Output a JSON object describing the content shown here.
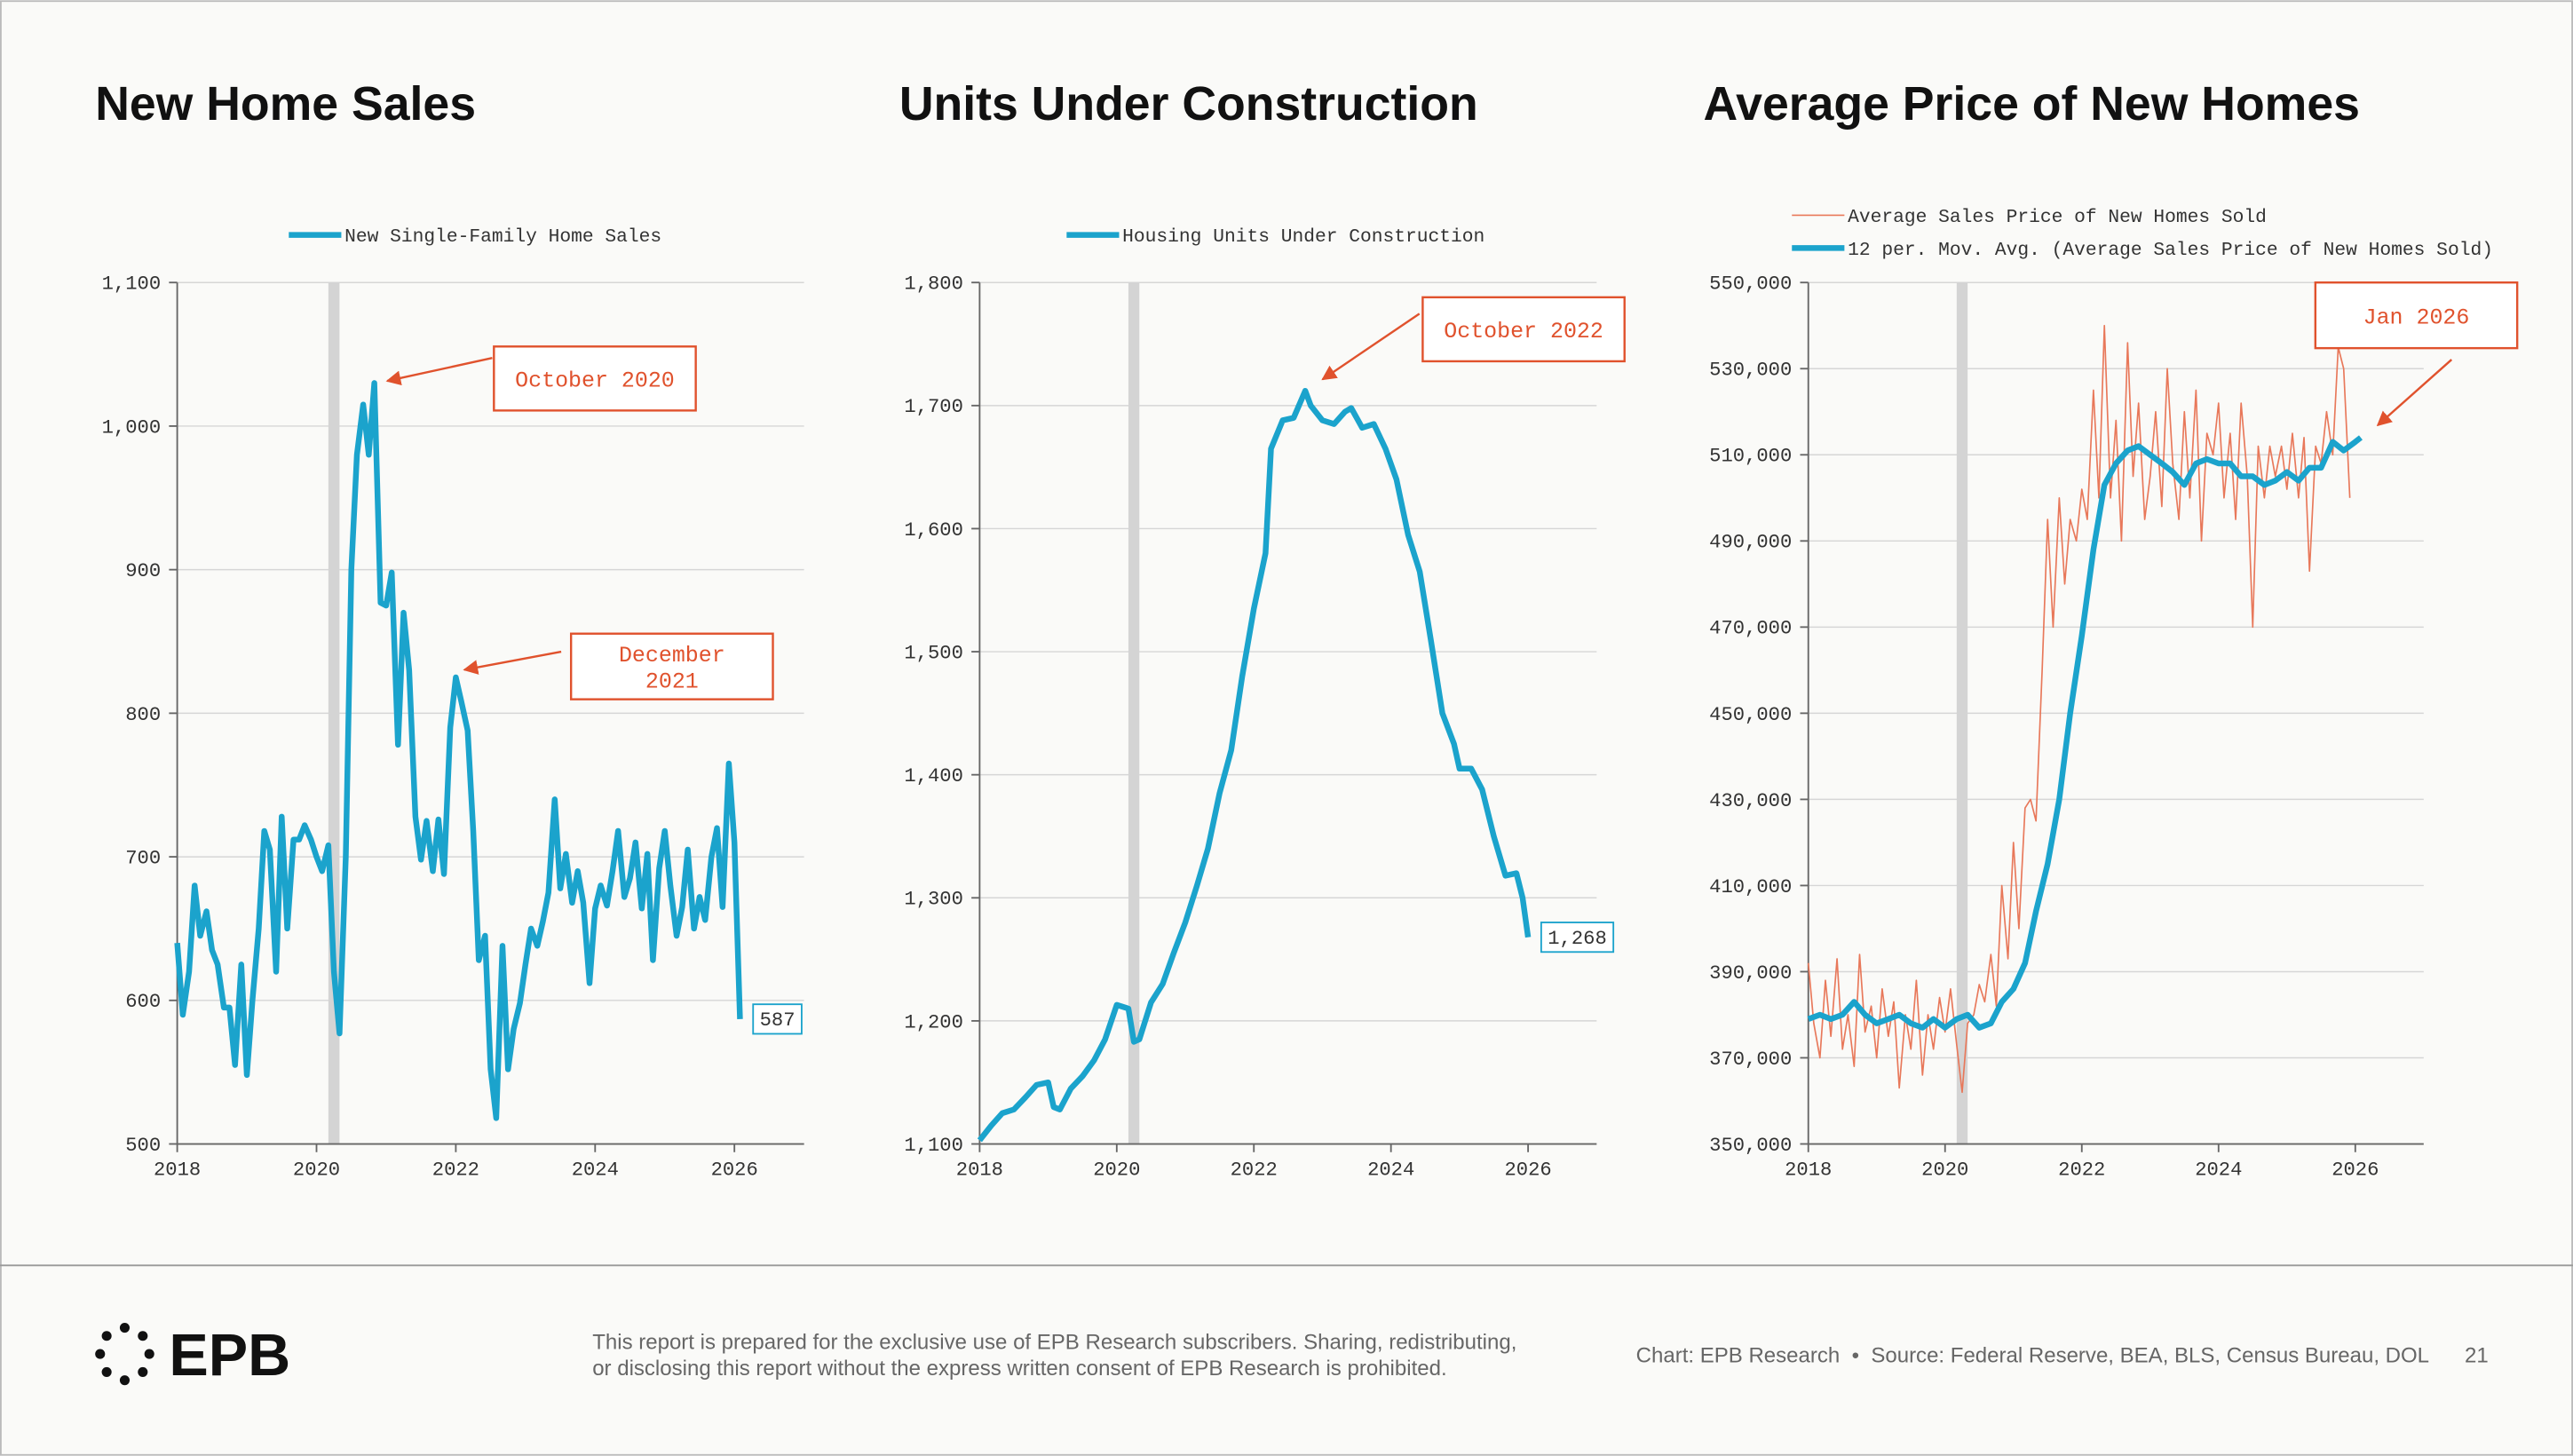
{
  "chart_data": [
    {
      "type": "line",
      "title": "New Home Sales",
      "xlim": [
        2018,
        2027
      ],
      "ylim": [
        500,
        1100
      ],
      "xticks": [
        2018,
        2020,
        2022,
        2024,
        2026
      ],
      "yticks": [
        500,
        600,
        700,
        800,
        900,
        {
          "value": 1000,
          "label": "1,000"
        },
        {
          "value": 1100,
          "label": "1,100"
        }
      ],
      "grid": true,
      "recession": [
        2020.17,
        2020.33
      ],
      "annotations": [
        [
          "October 2020"
        ],
        [
          "December",
          "2021"
        ]
      ],
      "series": [
        {
          "name": "New Single-Family Home Sales",
          "color": "#1ba3cc",
          "x": [
            2018,
            2018.08,
            2018.17,
            2018.25,
            2018.33,
            2018.42,
            2018.5,
            2018.58,
            2018.67,
            2018.75,
            2018.83,
            2018.92,
            2019,
            2019.08,
            2019.17,
            2019.25,
            2019.33,
            2019.42,
            2019.5,
            2019.58,
            2019.67,
            2019.75,
            2019.83,
            2019.92,
            2020,
            2020.08,
            2020.17,
            2020.25,
            2020.33,
            2020.42,
            2020.5,
            2020.58,
            2020.67,
            2020.75,
            2020.83,
            2020.92,
            2021,
            2021.08,
            2021.17,
            2021.25,
            2021.33,
            2021.42,
            2021.5,
            2021.58,
            2021.67,
            2021.75,
            2021.83,
            2021.92,
            2022,
            2022.08,
            2022.17,
            2022.25,
            2022.33,
            2022.42,
            2022.5,
            2022.58,
            2022.67,
            2022.75,
            2022.83,
            2022.92,
            2023,
            2023.08,
            2023.17,
            2023.25,
            2023.33,
            2023.42,
            2023.5,
            2023.58,
            2023.67,
            2023.75,
            2023.83,
            2023.92,
            2024,
            2024.08,
            2024.17,
            2024.25,
            2024.33,
            2024.42,
            2024.5,
            2024.58,
            2024.67,
            2024.75,
            2024.83,
            2024.92,
            2025,
            2025.08,
            2025.17,
            2025.25,
            2025.33,
            2025.42,
            2025.5,
            2025.58,
            2025.67,
            2025.75,
            2025.83,
            2025.92,
            2026,
            2026.08
          ],
          "values": [
            640,
            590,
            620,
            680,
            645,
            662,
            635,
            625,
            595,
            595,
            555,
            625,
            548,
            600,
            650,
            718,
            705,
            620,
            728,
            650,
            712,
            712,
            722,
            712,
            700,
            690,
            708,
            620,
            577,
            700,
            900,
            980,
            1015,
            980,
            1030,
            877,
            875,
            898,
            778,
            870,
            830,
            728,
            698,
            725,
            690,
            726,
            688,
            790,
            825,
            808,
            788,
            718,
            628,
            645,
            552,
            518,
            638,
            552,
            580,
            598,
            625,
            650,
            638,
            655,
            675,
            740,
            678,
            702,
            668,
            690,
            668,
            612,
            664,
            680,
            666,
            690,
            718,
            672,
            685,
            710,
            664,
            702,
            628,
            692,
            718,
            680,
            645,
            665,
            705,
            650,
            672,
            656,
            700,
            720,
            665,
            765,
            710,
            587
          ]
        }
      ]
    },
    {
      "type": "line",
      "title": "Units Under Construction",
      "xlim": [
        2018,
        2027
      ],
      "ylim": [
        1100,
        1800
      ],
      "xticks": [
        2018,
        2020,
        2022,
        2024,
        2026
      ],
      "yticks": [
        {
          "value": 1100,
          "label": "1,100"
        },
        {
          "value": 1200,
          "label": "1,200"
        },
        {
          "value": 1300,
          "label": "1,300"
        },
        {
          "value": 1400,
          "label": "1,400"
        },
        {
          "value": 1500,
          "label": "1,500"
        },
        {
          "value": 1600,
          "label": "1,600"
        },
        {
          "value": 1700,
          "label": "1,700"
        },
        {
          "value": 1800,
          "label": "1,800"
        }
      ],
      "grid": true,
      "recession": [
        2020.17,
        2020.33
      ],
      "annotations": [
        [
          "October 2022"
        ]
      ],
      "series": [
        {
          "name": "Housing Units Under Construction",
          "color": "#1ba3cc",
          "x": [
            2018,
            2018.17,
            2018.33,
            2018.5,
            2018.67,
            2018.83,
            2019,
            2019.08,
            2019.17,
            2019.33,
            2019.5,
            2019.67,
            2019.83,
            2020,
            2020.17,
            2020.25,
            2020.33,
            2020.5,
            2020.67,
            2020.83,
            2021,
            2021.17,
            2021.33,
            2021.5,
            2021.67,
            2021.83,
            2022,
            2022.17,
            2022.25,
            2022.42,
            2022.58,
            2022.75,
            2022.83,
            2023,
            2023.17,
            2023.33,
            2023.42,
            2023.58,
            2023.75,
            2023.92,
            2024.08,
            2024.25,
            2024.42,
            2024.58,
            2024.75,
            2024.92,
            2025,
            2025.17,
            2025.33,
            2025.5,
            2025.67,
            2025.83,
            2025.92,
            2026
          ],
          "values": [
            1103,
            1115,
            1125,
            1128,
            1138,
            1148,
            1150,
            1130,
            1128,
            1145,
            1155,
            1168,
            1185,
            1213,
            1210,
            1183,
            1185,
            1215,
            1230,
            1255,
            1280,
            1310,
            1340,
            1385,
            1420,
            1480,
            1535,
            1580,
            1665,
            1688,
            1690,
            1712,
            1700,
            1688,
            1685,
            1695,
            1698,
            1682,
            1685,
            1665,
            1640,
            1595,
            1565,
            1510,
            1450,
            1425,
            1405,
            1405,
            1388,
            1350,
            1318,
            1320,
            1300,
            1268
          ],
          "value_labels": [
            null,
            null,
            null,
            null,
            null,
            null,
            null,
            null,
            null,
            null,
            null,
            null,
            null,
            null,
            null,
            null,
            null,
            null,
            null,
            null,
            null,
            null,
            null,
            null,
            null,
            null,
            null,
            null,
            null,
            null,
            null,
            null,
            null,
            null,
            null,
            null,
            null,
            null,
            null,
            null,
            null,
            null,
            null,
            null,
            null,
            null,
            null,
            null,
            null,
            null,
            null,
            null,
            null,
            "1,268"
          ]
        }
      ]
    },
    {
      "type": "line",
      "title": "Average Price of New Homes",
      "xlim": [
        2018,
        2027
      ],
      "ylim": [
        350000,
        550000
      ],
      "xticks": [
        2018,
        2020,
        2022,
        2024,
        2026
      ],
      "yticks": [
        {
          "value": 350000,
          "label": "350,000"
        },
        {
          "value": 370000,
          "label": "370,000"
        },
        {
          "value": 390000,
          "label": "390,000"
        },
        {
          "value": 410000,
          "label": "410,000"
        },
        {
          "value": 430000,
          "label": "430,000"
        },
        {
          "value": 450000,
          "label": "450,000"
        },
        {
          "value": 470000,
          "label": "470,000"
        },
        {
          "value": 490000,
          "label": "490,000"
        },
        {
          "value": 510000,
          "label": "510,000"
        },
        {
          "value": 530000,
          "label": "530,000"
        },
        {
          "value": 550000,
          "label": "550,000"
        }
      ],
      "grid": true,
      "recession": [
        2020.17,
        2020.33
      ],
      "annotations": [
        [
          "Jan 2026"
        ]
      ],
      "series": [
        {
          "name": "Average Sales Price of New Homes Sold",
          "color": "#e8785a",
          "x": [
            2018,
            2018.08,
            2018.17,
            2018.25,
            2018.33,
            2018.42,
            2018.5,
            2018.58,
            2018.67,
            2018.75,
            2018.83,
            2018.92,
            2019,
            2019.08,
            2019.17,
            2019.25,
            2019.33,
            2019.42,
            2019.5,
            2019.58,
            2019.67,
            2019.75,
            2019.83,
            2019.92,
            2020,
            2020.08,
            2020.17,
            2020.25,
            2020.33,
            2020.42,
            2020.5,
            2020.58,
            2020.67,
            2020.75,
            2020.83,
            2020.92,
            2021,
            2021.08,
            2021.17,
            2021.25,
            2021.33,
            2021.42,
            2021.5,
            2021.58,
            2021.67,
            2021.75,
            2021.83,
            2021.92,
            2022,
            2022.08,
            2022.17,
            2022.25,
            2022.33,
            2022.42,
            2022.5,
            2022.58,
            2022.67,
            2022.75,
            2022.83,
            2022.92,
            2023,
            2023.08,
            2023.17,
            2023.25,
            2023.33,
            2023.42,
            2023.5,
            2023.58,
            2023.67,
            2023.75,
            2023.83,
            2023.92,
            2024,
            2024.08,
            2024.17,
            2024.25,
            2024.33,
            2024.42,
            2024.5,
            2024.58,
            2024.67,
            2024.75,
            2024.83,
            2024.92,
            2025,
            2025.08,
            2025.17,
            2025.25,
            2025.33,
            2025.42,
            2025.5,
            2025.58,
            2025.67,
            2025.75,
            2025.83,
            2025.92
          ],
          "values": [
            392000,
            378000,
            370000,
            388000,
            375000,
            393000,
            372000,
            380000,
            368000,
            394000,
            376000,
            382000,
            370000,
            386000,
            375000,
            383000,
            363000,
            380000,
            372000,
            388000,
            366000,
            380000,
            372000,
            384000,
            376000,
            386000,
            373000,
            362000,
            378000,
            380000,
            387000,
            383000,
            394000,
            382000,
            410000,
            393000,
            420000,
            400000,
            428000,
            430000,
            425000,
            460000,
            495000,
            470000,
            500000,
            480000,
            495000,
            490000,
            502000,
            495000,
            525000,
            500000,
            540000,
            500000,
            518000,
            490000,
            536000,
            505000,
            522000,
            495000,
            505000,
            520000,
            498000,
            530000,
            508000,
            495000,
            520000,
            500000,
            525000,
            490000,
            515000,
            510000,
            522000,
            500000,
            515000,
            495000,
            522000,
            505000,
            470000,
            512000,
            500000,
            512000,
            505000,
            512000,
            502000,
            515000,
            500000,
            514000,
            483000,
            512000,
            508000,
            520000,
            510000,
            535000,
            530000,
            500000
          ]
        },
        {
          "name": "12 per. Mov. Avg. (Average Sales Price of New Homes Sold)",
          "color": "#1ba3cc",
          "x": [
            2018,
            2018.17,
            2018.33,
            2018.5,
            2018.67,
            2018.83,
            2019,
            2019.17,
            2019.33,
            2019.5,
            2019.67,
            2019.83,
            2020,
            2020.17,
            2020.33,
            2020.5,
            2020.67,
            2020.83,
            2021,
            2021.17,
            2021.33,
            2021.5,
            2021.67,
            2021.83,
            2022,
            2022.17,
            2022.33,
            2022.5,
            2022.67,
            2022.83,
            2023,
            2023.17,
            2023.33,
            2023.5,
            2023.67,
            2023.83,
            2024,
            2024.17,
            2024.33,
            2024.5,
            2024.67,
            2024.83,
            2025,
            2025.17,
            2025.33,
            2025.5,
            2025.67,
            2025.83,
            2026,
            2026.08
          ],
          "values": [
            379000,
            380000,
            379000,
            380000,
            383000,
            380000,
            378000,
            379000,
            380000,
            378000,
            377000,
            379000,
            377000,
            379000,
            380000,
            377000,
            378000,
            383000,
            386000,
            392000,
            404000,
            415000,
            430000,
            450000,
            468000,
            488000,
            503000,
            508000,
            511000,
            512000,
            510000,
            508000,
            506000,
            503000,
            508000,
            509000,
            508000,
            508000,
            505000,
            505000,
            503000,
            504000,
            506000,
            504000,
            507000,
            507000,
            513000,
            511000,
            513000,
            514000
          ]
        }
      ]
    }
  ],
  "footer": {
    "logo": "EPB",
    "disclaimer": [
      "This report is prepared for the exclusive use of EPB Research subscribers. Sharing, redistributing,",
      "or disclosing this report without the express written consent of EPB Research is prohibited."
    ],
    "source": "Chart: EPB Research  •  Source: Federal Reserve, BEA, BLS, Census Bureau, DOL",
    "page": "21"
  }
}
